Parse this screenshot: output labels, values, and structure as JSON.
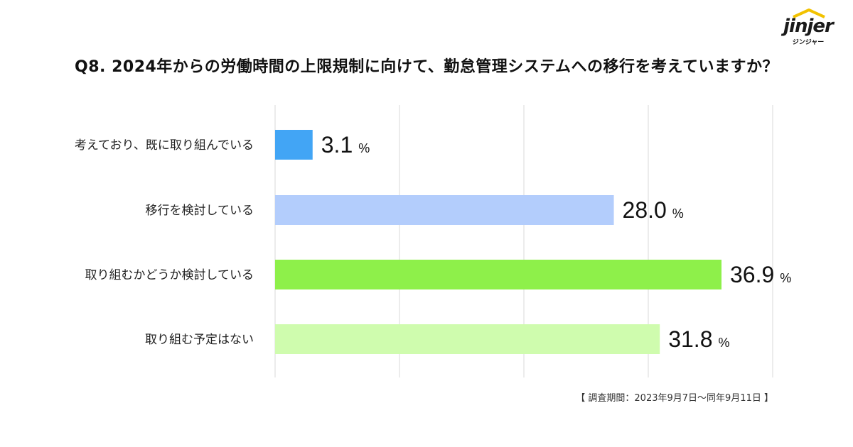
{
  "logo": {
    "word": "jinjer",
    "sub": "ジンジャー"
  },
  "title": "Q8. 2024年からの労働時間の上限規制に向けて、勤怠管理システムへの移行を考えていますか？",
  "note": "【 調査期間：2023年9月7日〜同年9月11日 】",
  "colors": {
    "bar1": "#42a5f5",
    "bar2": "#b3cdfc",
    "bar3": "#8ef04a",
    "bar4": "#cffcae",
    "grid": "#d9d9d9"
  },
  "chart_data": {
    "type": "bar",
    "orientation": "horizontal",
    "categories": [
      "考えており、既に取り組んでいる",
      "移行を検討している",
      "取り組むかどうか検討している",
      "取り組む予定はない"
    ],
    "values": [
      3.1,
      28.0,
      36.9,
      31.8
    ],
    "value_labels": [
      "3.1",
      "28.0",
      "36.9",
      "31.8"
    ],
    "unit": "%",
    "grid": true,
    "legend": "none"
  }
}
